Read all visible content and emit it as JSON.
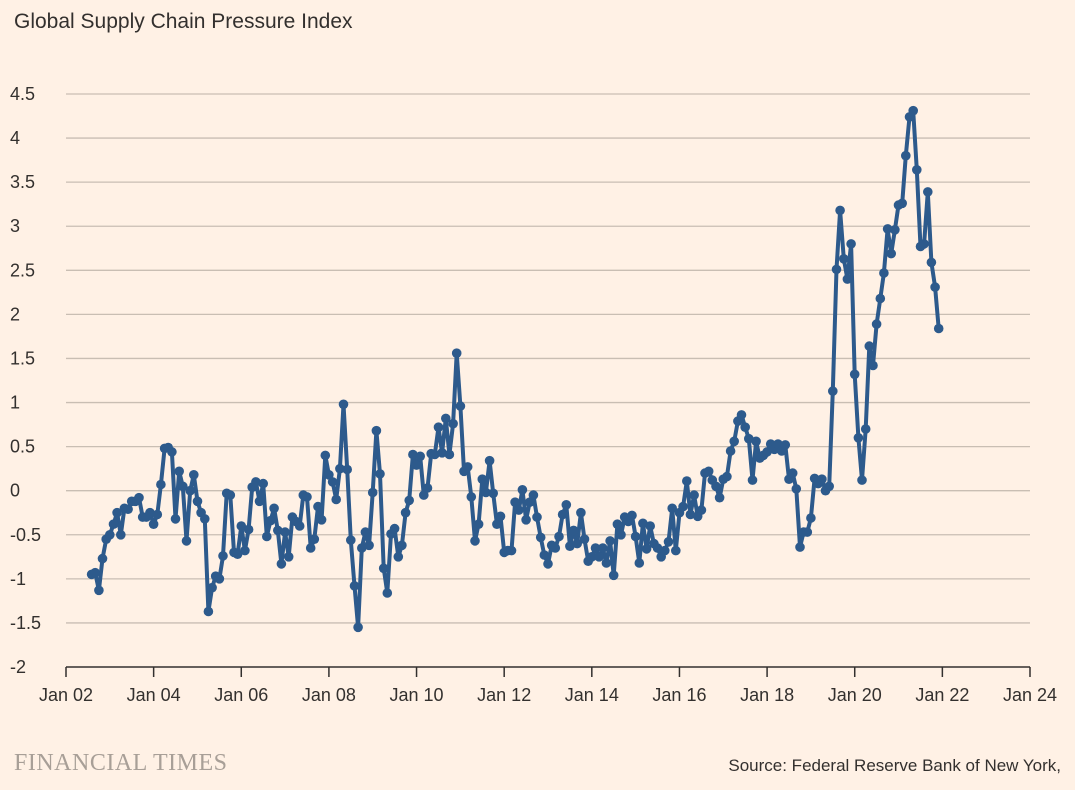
{
  "chart_data": {
    "type": "line",
    "title": "Global Supply Chain Pressure Index",
    "source": "Source: Federal Reserve Bank of New York,",
    "brand": "FINANCIAL TIMES",
    "xlim": [
      "1997-01",
      "2024-01"
    ],
    "ylim": [
      -2,
      4.5
    ],
    "y_ticks": [
      "-2",
      "-1.5",
      "-1",
      "-0.5",
      "0",
      "0.5",
      "1",
      "1.5",
      "2",
      "2.5",
      "3",
      "3.5",
      "4",
      "4.5"
    ],
    "x_ticks": [
      {
        "label": "Jan 02",
        "date": "2002-01"
      },
      {
        "label": "Jan 04",
        "date": "2004-01"
      },
      {
        "label": "Jan 06",
        "date": "2006-01"
      },
      {
        "label": "Jan 08",
        "date": "2008-01"
      },
      {
        "label": "Jan 10",
        "date": "2010-01"
      },
      {
        "label": "Jan 12",
        "date": "2012-01"
      },
      {
        "label": "Jan 14",
        "date": "2014-01"
      },
      {
        "label": "Jan 16",
        "date": "2016-01"
      },
      {
        "label": "Jan 18",
        "date": "2018-01"
      },
      {
        "label": "Jan 20",
        "date": "2020-01"
      },
      {
        "label": "Jan 22",
        "date": "2022-01"
      },
      {
        "label": "Jan 24",
        "date": "2024-01"
      }
    ],
    "grid": true,
    "colors": {
      "line": "#2d5a8c",
      "grid": "#c9beb3",
      "axis": "#33302e"
    },
    "series": [
      {
        "start": "2002-08",
        "frequency": "monthly",
        "values": [
          -0.95,
          -0.93,
          -1.13,
          -0.77,
          -0.55,
          -0.5,
          -0.38,
          -0.25,
          -0.5,
          -0.2,
          -0.21,
          -0.12,
          -0.12,
          -0.08,
          -0.3,
          -0.3,
          -0.25,
          -0.38,
          -0.27,
          0.07,
          0.48,
          0.49,
          0.44,
          -0.32,
          0.22,
          0.05,
          -0.57,
          0.0,
          0.18,
          -0.12,
          -0.25,
          -0.32,
          -1.37,
          -1.1,
          -0.97,
          -1.0,
          -0.74,
          -0.03,
          -0.05,
          -0.7,
          -0.72,
          -0.4,
          -0.68,
          -0.44,
          0.04,
          0.1,
          -0.12,
          0.08,
          -0.52,
          -0.34,
          -0.2,
          -0.45,
          -0.83,
          -0.47,
          -0.75,
          -0.3,
          -0.35,
          -0.4,
          -0.05,
          -0.07,
          -0.65,
          -0.55,
          -0.18,
          -0.33,
          0.4,
          0.18,
          0.1,
          -0.1,
          0.25,
          0.98,
          0.24,
          -0.56,
          -1.08,
          -1.55,
          -0.65,
          -0.47,
          -0.62,
          -0.02,
          0.68,
          0.19,
          -0.88,
          -1.16,
          -0.49,
          -0.43,
          -0.75,
          -0.62,
          -0.25,
          -0.11,
          0.41,
          0.29,
          0.39,
          -0.05,
          0.03,
          0.42,
          0.41,
          0.72,
          0.43,
          0.82,
          0.41,
          0.76,
          1.56,
          0.96,
          0.22,
          0.27,
          -0.07,
          -0.57,
          -0.38,
          0.13,
          -0.02,
          0.34,
          -0.03,
          -0.38,
          -0.29,
          -0.7,
          -0.68,
          -0.68,
          -0.13,
          -0.22,
          0.01,
          -0.33,
          -0.13,
          -0.05,
          -0.3,
          -0.53,
          -0.73,
          -0.83,
          -0.62,
          -0.65,
          -0.52,
          -0.27,
          -0.16,
          -0.63,
          -0.45,
          -0.6,
          -0.25,
          -0.55,
          -0.8,
          -0.75,
          -0.65,
          -0.75,
          -0.65,
          -0.82,
          -0.57,
          -0.96,
          -0.38,
          -0.5,
          -0.3,
          -0.35,
          -0.28,
          -0.52,
          -0.82,
          -0.37,
          -0.66,
          -0.4,
          -0.6,
          -0.65,
          -0.75,
          -0.68,
          -0.58,
          -0.2,
          -0.68,
          -0.25,
          -0.18,
          0.11,
          -0.27,
          -0.05,
          -0.29,
          -0.22,
          0.2,
          0.22,
          0.12,
          0.05,
          -0.08,
          0.13,
          0.16,
          0.45,
          0.56,
          0.79,
          0.86,
          0.72,
          0.59,
          0.12,
          0.56,
          0.37,
          0.4,
          0.44,
          0.53,
          0.47,
          0.53,
          0.45,
          0.52,
          0.13,
          0.2,
          0.02,
          -0.64,
          -0.47,
          -0.47,
          -0.31,
          0.14,
          0.08,
          0.13,
          0.0,
          0.05,
          1.13,
          2.51,
          3.18,
          2.63,
          2.4,
          2.8,
          1.32,
          0.6,
          0.12,
          0.7,
          1.64,
          1.42,
          1.89,
          2.18,
          2.47,
          2.97,
          2.69,
          2.96,
          3.24,
          3.26,
          3.8,
          4.24,
          4.31,
          3.64,
          2.77,
          2.8,
          3.39,
          2.59,
          2.31,
          1.84
        ]
      }
    ]
  }
}
